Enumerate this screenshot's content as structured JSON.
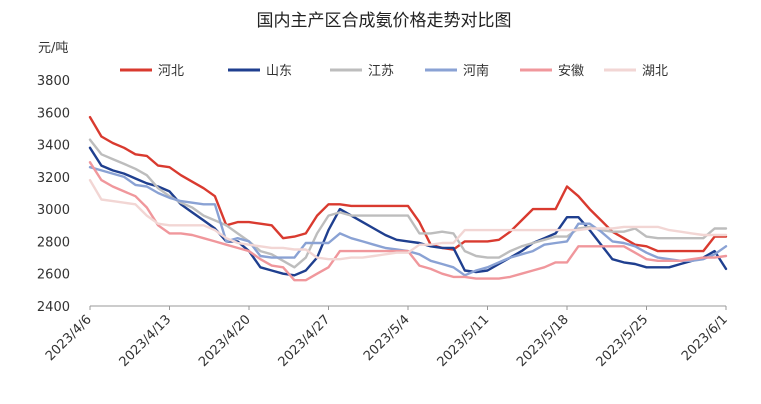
{
  "chart_data": {
    "type": "line",
    "title": "国内主产区合成氨价格走势对比图",
    "ylabel": "元/吨",
    "xlabel": "",
    "ylim": [
      2400,
      3800
    ],
    "yticks": [
      2400,
      2600,
      2800,
      3000,
      3200,
      3400,
      3600,
      3800
    ],
    "grid": false,
    "legend_position": "top",
    "x": [
      "4/6",
      "4/7",
      "4/8",
      "4/9",
      "4/10",
      "4/11",
      "4/12",
      "4/13",
      "4/14",
      "4/15",
      "4/16",
      "4/17",
      "4/18",
      "4/19",
      "4/20",
      "4/21",
      "4/22",
      "4/23",
      "4/24",
      "4/25",
      "4/26",
      "4/27",
      "4/28",
      "4/29",
      "4/30",
      "5/1",
      "5/2",
      "5/3",
      "5/4",
      "5/5",
      "5/6",
      "5/7",
      "5/8",
      "5/9",
      "5/10",
      "5/11",
      "5/12",
      "5/13",
      "5/14",
      "5/15",
      "5/16",
      "5/17",
      "5/18",
      "5/19",
      "5/20",
      "5/21",
      "5/22",
      "5/23",
      "5/24",
      "5/25",
      "5/26",
      "5/27",
      "5/28",
      "5/29",
      "5/30",
      "5/31",
      "6/1"
    ],
    "xtick_labels": [
      "2023/4/6",
      "2023/4/13",
      "2023/4/20",
      "2023/4/27",
      "2023/5/4",
      "2023/5/11",
      "2023/5/18",
      "2023/5/25",
      "2023/6/1"
    ],
    "xtick_index": [
      0,
      7,
      14,
      21,
      28,
      35,
      42,
      49,
      56
    ],
    "series": [
      {
        "name": "河北",
        "color": "#d93a2f",
        "values": [
          3570,
          3450,
          3410,
          3380,
          3340,
          3330,
          3270,
          3260,
          3210,
          3170,
          3130,
          3080,
          2900,
          2920,
          2920,
          2910,
          2900,
          2820,
          2830,
          2850,
          2960,
          3030,
          3030,
          3020,
          3020,
          3020,
          3020,
          3020,
          3020,
          2920,
          2780,
          2760,
          2750,
          2800,
          2800,
          2800,
          2810,
          2860,
          2930,
          3000,
          3000,
          3000,
          3140,
          3080,
          3000,
          2930,
          2860,
          2820,
          2780,
          2770,
          2740,
          2740,
          2740,
          2740,
          2740,
          2830,
          2830
        ]
      },
      {
        "name": "山东",
        "color": "#1f3f8f",
        "values": [
          3380,
          3270,
          3240,
          3220,
          3190,
          3160,
          3140,
          3110,
          3030,
          2980,
          2930,
          2880,
          2800,
          2800,
          2740,
          2640,
          2620,
          2600,
          2590,
          2620,
          2700,
          2870,
          3000,
          2960,
          2920,
          2880,
          2840,
          2810,
          2800,
          2790,
          2770,
          2760,
          2760,
          2620,
          2610,
          2620,
          2660,
          2700,
          2740,
          2790,
          2820,
          2850,
          2950,
          2950,
          2870,
          2780,
          2690,
          2670,
          2660,
          2640,
          2640,
          2640,
          2660,
          2680,
          2700,
          2740,
          2630
        ]
      },
      {
        "name": "江苏",
        "color": "#bdbdbd",
        "values": [
          3430,
          3340,
          3310,
          3280,
          3250,
          3210,
          3130,
          3080,
          3040,
          3010,
          2960,
          2930,
          2900,
          2850,
          2800,
          2740,
          2720,
          2680,
          2640,
          2700,
          2850,
          2960,
          2980,
          2960,
          2960,
          2960,
          2960,
          2960,
          2960,
          2850,
          2850,
          2860,
          2850,
          2740,
          2710,
          2700,
          2700,
          2740,
          2770,
          2790,
          2810,
          2830,
          2830,
          2880,
          2890,
          2870,
          2860,
          2860,
          2880,
          2830,
          2820,
          2820,
          2820,
          2820,
          2820,
          2880,
          2880
        ]
      },
      {
        "name": "河南",
        "color": "#8aa2d4",
        "values": [
          3260,
          3240,
          3220,
          3200,
          3150,
          3140,
          3100,
          3070,
          3050,
          3040,
          3030,
          3030,
          2800,
          2820,
          2800,
          2710,
          2700,
          2700,
          2700,
          2790,
          2790,
          2790,
          2850,
          2820,
          2800,
          2780,
          2760,
          2750,
          2740,
          2720,
          2680,
          2660,
          2640,
          2590,
          2620,
          2640,
          2670,
          2700,
          2720,
          2740,
          2780,
          2790,
          2800,
          2910,
          2910,
          2860,
          2800,
          2790,
          2770,
          2730,
          2700,
          2690,
          2680,
          2680,
          2690,
          2720,
          2770
        ]
      },
      {
        "name": "安徽",
        "color": "#f0979c",
        "values": [
          3290,
          3180,
          3140,
          3110,
          3080,
          3010,
          2900,
          2850,
          2850,
          2840,
          2820,
          2800,
          2780,
          2760,
          2740,
          2690,
          2650,
          2640,
          2560,
          2560,
          2600,
          2640,
          2740,
          2740,
          2740,
          2740,
          2740,
          2740,
          2740,
          2650,
          2630,
          2600,
          2580,
          2580,
          2570,
          2570,
          2570,
          2580,
          2600,
          2620,
          2640,
          2670,
          2670,
          2770,
          2770,
          2770,
          2770,
          2770,
          2730,
          2690,
          2680,
          2680,
          2680,
          2690,
          2700,
          2700,
          2710
        ]
      },
      {
        "name": "湖北",
        "color": "#f2d6d4",
        "values": [
          3180,
          3060,
          3050,
          3040,
          3030,
          2960,
          2910,
          2900,
          2900,
          2900,
          2900,
          2870,
          2820,
          2790,
          2780,
          2770,
          2760,
          2760,
          2750,
          2750,
          2700,
          2690,
          2690,
          2700,
          2700,
          2710,
          2720,
          2730,
          2730,
          2780,
          2780,
          2790,
          2790,
          2870,
          2870,
          2870,
          2870,
          2870,
          2870,
          2870,
          2870,
          2870,
          2870,
          2870,
          2880,
          2880,
          2880,
          2890,
          2890,
          2890,
          2890,
          2870,
          2860,
          2850,
          2840,
          2840,
          2840
        ]
      }
    ]
  }
}
